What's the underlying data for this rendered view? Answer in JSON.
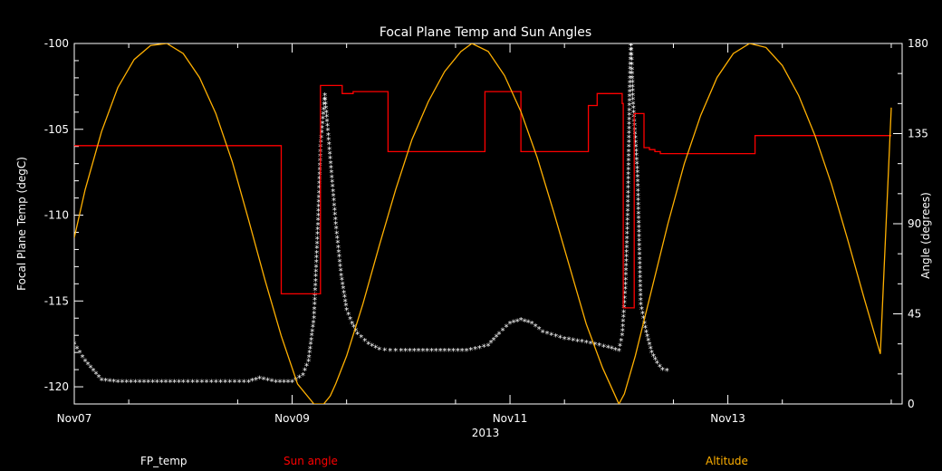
{
  "chart_data": {
    "type": "line",
    "title": "Focal Plane Temp and Sun Angles",
    "xlabel": "2013",
    "ylabel_left": "Focal Plane Temp (degC)",
    "ylabel_right": "Angle (degrees)",
    "ylim_left": [
      -121,
      -100
    ],
    "ylim_right": [
      0,
      180
    ],
    "xlim": [
      7.0,
      14.6
    ],
    "x_ticks": [
      {
        "x": 7,
        "label": "Nov07"
      },
      {
        "x": 9,
        "label": "Nov09"
      },
      {
        "x": 11,
        "label": "Nov11"
      },
      {
        "x": 13,
        "label": "Nov13"
      }
    ],
    "y_ticks_left": [
      -100,
      -105,
      -110,
      -115,
      -120
    ],
    "y_ticks_left_labels": [
      "-100",
      "-105",
      "-110",
      "-115",
      "-120"
    ],
    "y_ticks_right": [
      0,
      45,
      90,
      135,
      180
    ],
    "y_ticks_right_labels": [
      "0",
      "45",
      "90",
      "135",
      "180"
    ],
    "grid": false,
    "series": [
      {
        "name": "FP_temp",
        "axis": "left",
        "color": "#ffffff",
        "marker": "asterisk",
        "x": [
          7.0,
          7.1,
          7.25,
          7.4,
          7.6,
          7.8,
          8.0,
          8.3,
          8.6,
          8.7,
          8.85,
          9.0,
          9.1,
          9.15,
          9.2,
          9.22,
          9.24,
          9.26,
          9.3,
          9.32,
          9.36,
          9.4,
          9.45,
          9.5,
          9.55,
          9.6,
          9.7,
          9.8,
          9.9,
          10.0,
          10.2,
          10.4,
          10.6,
          10.8,
          10.9,
          11.0,
          11.1,
          11.2,
          11.3,
          11.5,
          11.7,
          11.9,
          12.0,
          12.03,
          12.06,
          12.08,
          12.09,
          12.1,
          12.11,
          12.12,
          12.13,
          12.15,
          12.17,
          12.2,
          12.25,
          12.3,
          12.35,
          12.4,
          12.48
        ],
        "y": [
          -117.5,
          -118.5,
          -119.6,
          -119.7,
          -119.7,
          -119.7,
          -119.7,
          -119.7,
          -119.7,
          -119.5,
          -119.7,
          -119.7,
          -119.3,
          -118.5,
          -116.0,
          -113.0,
          -110.0,
          -106.0,
          -103.0,
          -104.5,
          -107.5,
          -110.5,
          -113.5,
          -115.5,
          -116.3,
          -116.9,
          -117.5,
          -117.8,
          -117.9,
          -117.9,
          -117.9,
          -117.9,
          -117.9,
          -117.6,
          -116.9,
          -116.3,
          -116.1,
          -116.3,
          -116.8,
          -117.2,
          -117.4,
          -117.7,
          -117.9,
          -117.0,
          -114.0,
          -110.0,
          -106.0,
          -102.0,
          -99.8,
          -101.5,
          -103.5,
          -105.5,
          -107.5,
          -115.2,
          -116.8,
          -118.0,
          -118.6,
          -119.0,
          -119.1
        ]
      },
      {
        "name": "Sun angle",
        "axis": "right",
        "color": "#ff0000",
        "marker": "none",
        "x": [
          7.0,
          8.9,
          8.9,
          9.26,
          9.26,
          9.46,
          9.46,
          9.56,
          9.56,
          9.88,
          9.88,
          10.77,
          10.77,
          11.1,
          11.1,
          11.72,
          11.72,
          11.8,
          11.8,
          12.03,
          12.03,
          12.04,
          12.04,
          12.14,
          12.14,
          12.23,
          12.23,
          12.28,
          12.28,
          12.33,
          12.33,
          12.38,
          12.38,
          13.25,
          13.25,
          14.0,
          14.5
        ],
        "y": [
          129,
          129,
          55,
          55,
          159,
          159,
          155,
          155,
          156,
          156,
          126,
          126,
          156,
          156,
          126,
          126,
          149,
          149,
          155,
          155,
          150,
          150,
          48,
          48,
          145,
          145,
          128,
          128,
          127,
          127,
          126,
          126,
          125,
          125,
          134,
          134,
          134
        ]
      },
      {
        "name": "Altitude",
        "axis": "right",
        "color": "#ffb000",
        "marker": "none",
        "x": [
          7.0,
          7.1,
          7.25,
          7.4,
          7.55,
          7.7,
          7.85,
          8.0,
          8.15,
          8.3,
          8.45,
          8.6,
          8.75,
          8.9,
          9.05,
          9.2,
          9.29,
          9.35,
          9.4,
          9.5,
          9.65,
          9.8,
          9.95,
          10.1,
          10.25,
          10.4,
          10.55,
          10.65,
          10.8,
          10.95,
          11.1,
          11.25,
          11.4,
          11.55,
          11.7,
          11.85,
          11.95,
          12.0,
          12.05,
          12.15,
          12.3,
          12.45,
          12.6,
          12.75,
          12.9,
          13.05,
          13.2,
          13.35,
          13.5,
          13.65,
          13.8,
          13.95,
          14.1,
          14.25,
          14.4,
          14.5
        ],
        "y": [
          83,
          107,
          136,
          158,
          172,
          179,
          180,
          175,
          163,
          145,
          121,
          92,
          62,
          34,
          10,
          0,
          0,
          4,
          10,
          24,
          50,
          79,
          107,
          132,
          151,
          166,
          176,
          180,
          176,
          164,
          146,
          123,
          96,
          68,
          40,
          18,
          6,
          0,
          5,
          24,
          57,
          90,
          120,
          144,
          163,
          175,
          180,
          178,
          169,
          154,
          134,
          110,
          82,
          53,
          25,
          148
        ]
      }
    ],
    "legend": [
      {
        "label": "FP_temp",
        "color": "#ffffff"
      },
      {
        "label": "Sun angle",
        "color": "#ff0000"
      },
      {
        "label": "Altitude",
        "color": "#ffb000"
      }
    ]
  }
}
